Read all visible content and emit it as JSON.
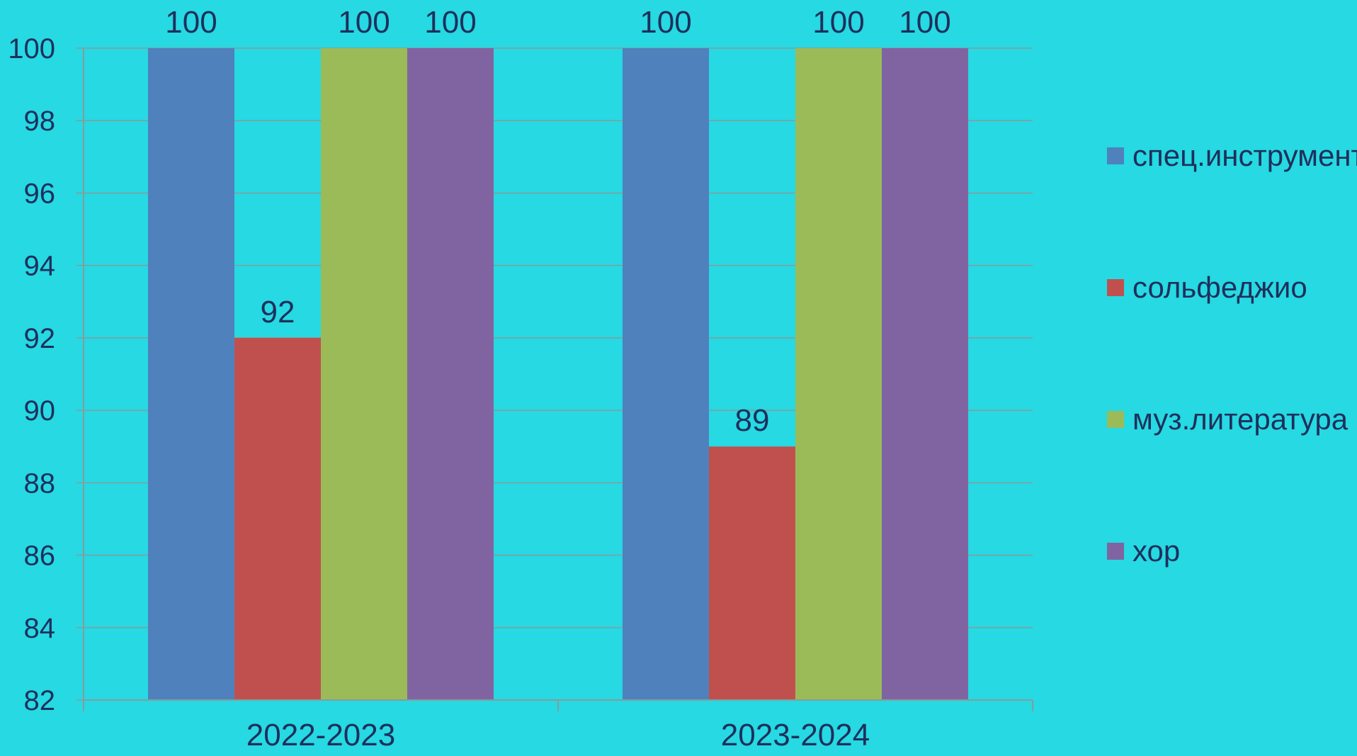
{
  "chart_data": {
    "type": "bar",
    "categories": [
      "2022-2023",
      "2023-2024"
    ],
    "series": [
      {
        "name": "спец.инструмент",
        "values": [
          100,
          100
        ],
        "color": "#4f81bd"
      },
      {
        "name": "сольфеджио",
        "values": [
          92,
          89
        ],
        "color": "#c0504d"
      },
      {
        "name": "муз.литература",
        "values": [
          100,
          100
        ],
        "color": "#9bbb59"
      },
      {
        "name": "хор",
        "values": [
          100,
          100
        ],
        "color": "#8064a2"
      }
    ],
    "ylim": [
      82,
      100
    ],
    "yticks": [
      82,
      84,
      86,
      88,
      90,
      92,
      94,
      96,
      98,
      100
    ],
    "grid": true,
    "legend": "right",
    "data_labels": true
  },
  "colors": {
    "background": "#26d9e2",
    "text": "#1f2f5c",
    "grid": "#8a9a9a"
  }
}
